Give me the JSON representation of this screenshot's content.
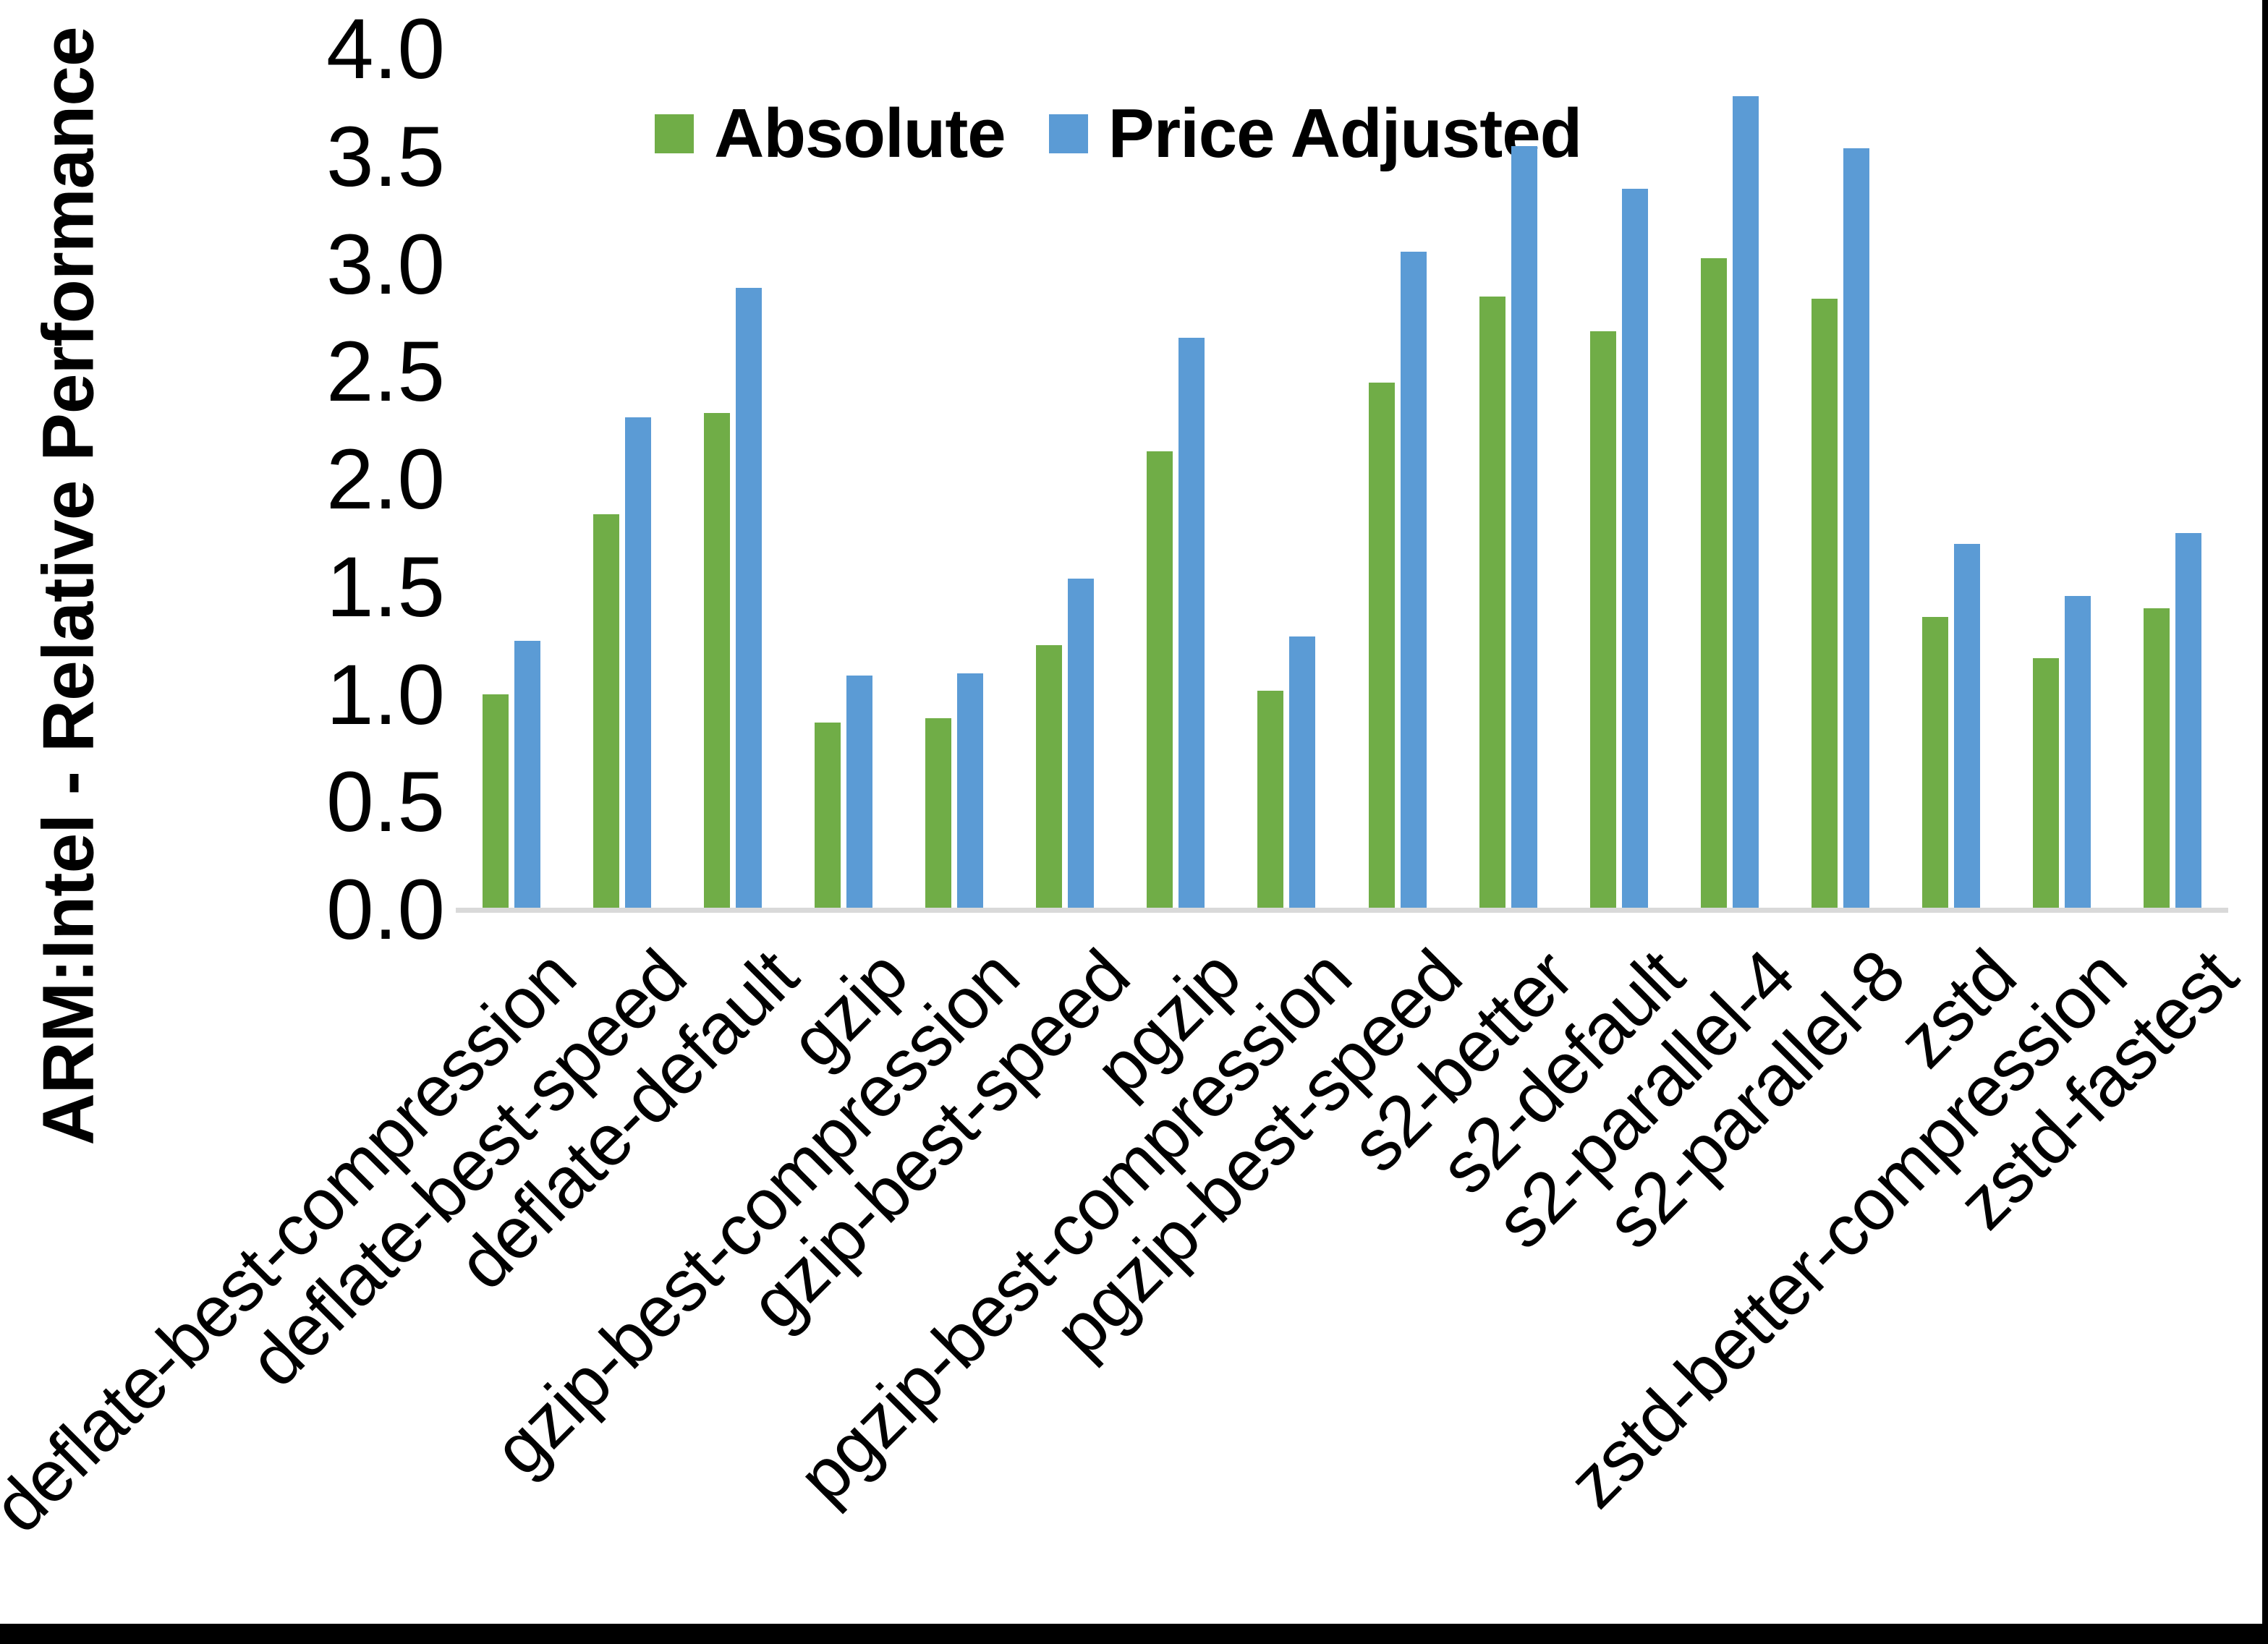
{
  "figure": {
    "y_axis_title": "ARM:Intel - Relative Performance",
    "background_color": "#ffffff",
    "border_color": "#000000",
    "axis_line_color": "#d9d9d9"
  },
  "legend": {
    "items": [
      {
        "label": "Absolute",
        "color": "#70AD47"
      },
      {
        "label": "Price Adjusted",
        "color": "#5B9BD5"
      }
    ]
  },
  "chart_data": {
    "type": "bar",
    "title": "",
    "xlabel": "",
    "ylabel": "ARM:Intel - Relative Performance",
    "ylim": [
      0.0,
      4.0
    ],
    "ytick_labels": [
      "4.0",
      "3.5",
      "3.0",
      "2.5",
      "2.0",
      "1.5",
      "1.0",
      "0.5",
      "0.0"
    ],
    "grid": false,
    "legend_position": "top-center",
    "categories": [
      "deflate-best-compression",
      "deflate-best-speed",
      "deflate-default",
      "gzip",
      "gzip-best-compression",
      "gzip-best-speed",
      "pgzip",
      "pgzip-best-compression",
      "pgzip-best-speed",
      "s2-better",
      "s2-default",
      "s2-parallel-4",
      "s2-parallel-8",
      "zstd",
      "zstd-better-compression",
      "zstd-fastest"
    ],
    "series": [
      {
        "name": "Absolute",
        "color": "#70AD47",
        "values": [
          1.0,
          1.84,
          2.31,
          0.87,
          0.89,
          1.23,
          2.13,
          1.02,
          2.45,
          2.85,
          2.69,
          3.03,
          2.84,
          1.36,
          1.17,
          1.4
        ]
      },
      {
        "name": "Price Adjusted",
        "color": "#5B9BD5",
        "values": [
          1.25,
          2.29,
          2.89,
          1.09,
          1.1,
          1.54,
          2.66,
          1.27,
          3.06,
          3.55,
          3.35,
          3.78,
          3.54,
          1.7,
          1.46,
          1.75
        ]
      }
    ]
  }
}
